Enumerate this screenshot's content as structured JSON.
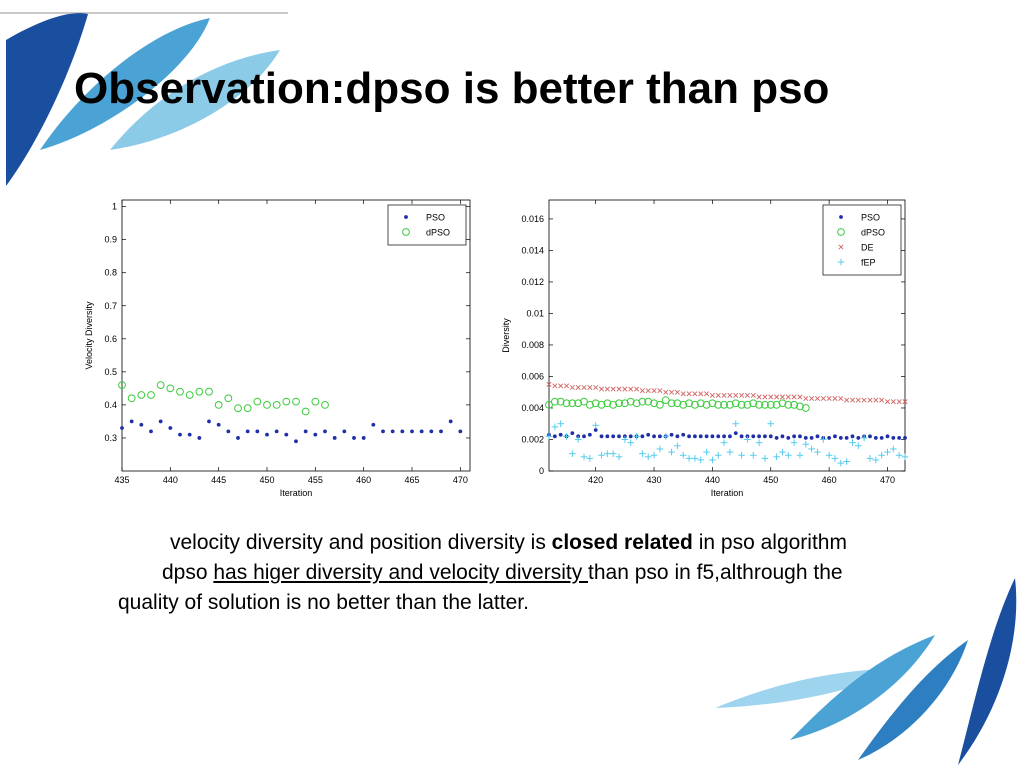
{
  "slide": {
    "title": "Observation:dpso is better than pso",
    "para1": {
      "before": "velocity diversity and position diversity is ",
      "bold": "closed related",
      "after": " in pso algorithm"
    },
    "para2": {
      "before": "dpso ",
      "underlined": "has higer diversity and velocity diversity ",
      "after": "than pso in f5,althrough the quality of solution is no better than the latter."
    },
    "colors": {
      "blue_dark": "#1a4fa0",
      "blue_light": "#5ab3dd",
      "title": "#000000"
    }
  },
  "chart_data": [
    {
      "type": "scatter",
      "title": "",
      "xlabel": "Iteration",
      "ylabel": "Velocity Diversity",
      "xlim": [
        435,
        471
      ],
      "ylim": [
        0.2,
        1.02
      ],
      "xticks": [
        435,
        440,
        445,
        450,
        455,
        460,
        465,
        470
      ],
      "yticks": [
        0.3,
        0.4,
        0.5,
        0.6,
        0.7,
        0.8,
        0.9,
        1
      ],
      "legend_position": "top-right",
      "grid": false,
      "series": [
        {
          "name": "PSO",
          "marker": "dot",
          "color": "#1f2fa8",
          "x": [
            435,
            436,
            437,
            438,
            439,
            440,
            441,
            442,
            443,
            444,
            445,
            446,
            447,
            448,
            449,
            450,
            451,
            452,
            453,
            454,
            455,
            456,
            457,
            458,
            459,
            460,
            461,
            462,
            463,
            464,
            465,
            466,
            467,
            468,
            469,
            470
          ],
          "y": [
            0.33,
            0.35,
            0.34,
            0.32,
            0.35,
            0.33,
            0.31,
            0.31,
            0.3,
            0.35,
            0.34,
            0.32,
            0.3,
            0.32,
            0.32,
            0.31,
            0.32,
            0.31,
            0.29,
            0.32,
            0.31,
            0.32,
            0.3,
            0.32,
            0.3,
            0.3,
            0.34,
            0.32,
            0.32,
            0.32,
            0.32,
            0.32,
            0.32,
            0.32,
            0.35,
            0.32
          ]
        },
        {
          "name": "dPSO",
          "marker": "circle",
          "color": "#3ccc3c",
          "x": [
            435,
            436,
            437,
            438,
            439,
            440,
            441,
            442,
            443,
            444,
            445,
            446,
            447,
            448,
            449,
            450,
            451,
            452,
            453,
            454,
            455,
            456
          ],
          "y": [
            0.46,
            0.42,
            0.43,
            0.43,
            0.46,
            0.45,
            0.44,
            0.43,
            0.44,
            0.44,
            0.4,
            0.42,
            0.39,
            0.39,
            0.41,
            0.4,
            0.4,
            0.41,
            0.41,
            0.38,
            0.41,
            0.4
          ]
        }
      ]
    },
    {
      "type": "scatter",
      "title": "",
      "xlabel": "Iteration",
      "ylabel": "Diversity",
      "xlim": [
        412,
        473
      ],
      "ylim": [
        0,
        0.0172
      ],
      "xticks": [
        420,
        430,
        440,
        450,
        460,
        470
      ],
      "yticks": [
        0,
        0.002,
        0.004,
        0.006,
        0.008,
        0.01,
        0.012,
        0.014,
        0.016
      ],
      "legend_position": "top-right",
      "grid": false,
      "series": [
        {
          "name": "PSO",
          "marker": "dot",
          "color": "#1f2fa8",
          "x": [
            412,
            413,
            414,
            415,
            416,
            417,
            418,
            419,
            420,
            421,
            422,
            423,
            424,
            425,
            426,
            427,
            428,
            429,
            430,
            431,
            432,
            433,
            434,
            435,
            436,
            437,
            438,
            439,
            440,
            441,
            442,
            443,
            444,
            445,
            446,
            447,
            448,
            449,
            450,
            451,
            452,
            453,
            454,
            455,
            456,
            457,
            458,
            459,
            460,
            461,
            462,
            463,
            464,
            465,
            466,
            467,
            468,
            469,
            470,
            471,
            472,
            473
          ],
          "y": [
            0.0023,
            0.0022,
            0.0023,
            0.0022,
            0.0024,
            0.0022,
            0.0022,
            0.0023,
            0.0026,
            0.0022,
            0.0022,
            0.0022,
            0.0022,
            0.0022,
            0.0022,
            0.0022,
            0.0022,
            0.0023,
            0.0022,
            0.0022,
            0.0022,
            0.0023,
            0.0022,
            0.0023,
            0.0022,
            0.0022,
            0.0022,
            0.0022,
            0.0022,
            0.0022,
            0.0022,
            0.0022,
            0.0024,
            0.0022,
            0.0022,
            0.0022,
            0.0022,
            0.0022,
            0.0022,
            0.0021,
            0.0022,
            0.0021,
            0.0022,
            0.0022,
            0.0021,
            0.0021,
            0.0022,
            0.0021,
            0.0021,
            0.0022,
            0.0021,
            0.0021,
            0.0022,
            0.0021,
            0.0022,
            0.0022,
            0.0021,
            0.0021,
            0.0022,
            0.0021,
            0.0021,
            0.0021
          ]
        },
        {
          "name": "dPSO",
          "marker": "circle",
          "color": "#3ccc3c",
          "x": [
            412,
            413,
            414,
            415,
            416,
            417,
            418,
            419,
            420,
            421,
            422,
            423,
            424,
            425,
            426,
            427,
            428,
            429,
            430,
            431,
            432,
            433,
            434,
            435,
            436,
            437,
            438,
            439,
            440,
            441,
            442,
            443,
            444,
            445,
            446,
            447,
            448,
            449,
            450,
            451,
            452,
            453,
            454,
            455,
            456
          ],
          "y": [
            0.0042,
            0.0044,
            0.0044,
            0.0043,
            0.0043,
            0.0043,
            0.0044,
            0.0042,
            0.0043,
            0.0042,
            0.0043,
            0.0042,
            0.0043,
            0.0043,
            0.0044,
            0.0043,
            0.0044,
            0.0044,
            0.0043,
            0.0042,
            0.0045,
            0.0043,
            0.0043,
            0.0042,
            0.0043,
            0.0042,
            0.0043,
            0.0042,
            0.0043,
            0.0042,
            0.0042,
            0.0042,
            0.0043,
            0.0042,
            0.0042,
            0.0043,
            0.0042,
            0.0042,
            0.0042,
            0.0042,
            0.0043,
            0.0042,
            0.0042,
            0.0041,
            0.004
          ]
        },
        {
          "name": "DE",
          "marker": "x",
          "color": "#d26464",
          "x": [
            412,
            413,
            414,
            415,
            416,
            417,
            418,
            419,
            420,
            421,
            422,
            423,
            424,
            425,
            426,
            427,
            428,
            429,
            430,
            431,
            432,
            433,
            434,
            435,
            436,
            437,
            438,
            439,
            440,
            441,
            442,
            443,
            444,
            445,
            446,
            447,
            448,
            449,
            450,
            451,
            452,
            453,
            454,
            455,
            456,
            457,
            458,
            459,
            460,
            461,
            462,
            463,
            464,
            465,
            466,
            467,
            468,
            469,
            470,
            471,
            472,
            473
          ],
          "y": [
            0.0055,
            0.0054,
            0.0054,
            0.0054,
            0.0053,
            0.0053,
            0.0053,
            0.0053,
            0.0053,
            0.0052,
            0.0052,
            0.0052,
            0.0052,
            0.0052,
            0.0052,
            0.0052,
            0.0051,
            0.0051,
            0.0051,
            0.0051,
            0.005,
            0.005,
            0.005,
            0.0049,
            0.0049,
            0.0049,
            0.0049,
            0.0049,
            0.0048,
            0.0048,
            0.0048,
            0.0048,
            0.0048,
            0.0048,
            0.0048,
            0.0048,
            0.0047,
            0.0047,
            0.0047,
            0.0047,
            0.0047,
            0.0047,
            0.0047,
            0.0047,
            0.0046,
            0.0046,
            0.0046,
            0.0046,
            0.0046,
            0.0046,
            0.0046,
            0.0045,
            0.0045,
            0.0045,
            0.0045,
            0.0045,
            0.0045,
            0.0045,
            0.0044,
            0.0044,
            0.0044,
            0.0044
          ]
        },
        {
          "name": "fEP",
          "marker": "plus",
          "color": "#55ccee",
          "x": [
            412,
            413,
            414,
            415,
            416,
            417,
            418,
            419,
            420,
            421,
            422,
            423,
            424,
            425,
            426,
            427,
            428,
            429,
            430,
            431,
            432,
            433,
            434,
            435,
            436,
            437,
            438,
            439,
            440,
            441,
            442,
            443,
            444,
            445,
            446,
            447,
            448,
            449,
            450,
            451,
            452,
            453,
            454,
            455,
            456,
            457,
            458,
            459,
            460,
            461,
            462,
            463,
            464,
            465,
            466,
            467,
            468,
            469,
            470,
            471,
            472,
            473
          ],
          "y": [
            0.0022,
            0.0028,
            0.003,
            0.0022,
            0.0011,
            0.002,
            0.0009,
            0.0008,
            0.0029,
            0.001,
            0.0011,
            0.0011,
            0.0009,
            0.002,
            0.0018,
            0.0022,
            0.0011,
            0.0009,
            0.001,
            0.0014,
            0.0022,
            0.0012,
            0.0016,
            0.001,
            0.0008,
            0.0008,
            0.0007,
            0.0012,
            0.0007,
            0.001,
            0.0018,
            0.0012,
            0.003,
            0.001,
            0.002,
            0.001,
            0.0018,
            0.0008,
            0.003,
            0.0009,
            0.0012,
            0.001,
            0.0018,
            0.001,
            0.0017,
            0.0014,
            0.0012,
            0.002,
            0.001,
            0.0008,
            0.0005,
            0.0006,
            0.0018,
            0.0016,
            0.0021,
            0.0008,
            0.0007,
            0.001,
            0.0012,
            0.0014,
            0.001,
            0.0009
          ]
        }
      ]
    }
  ]
}
